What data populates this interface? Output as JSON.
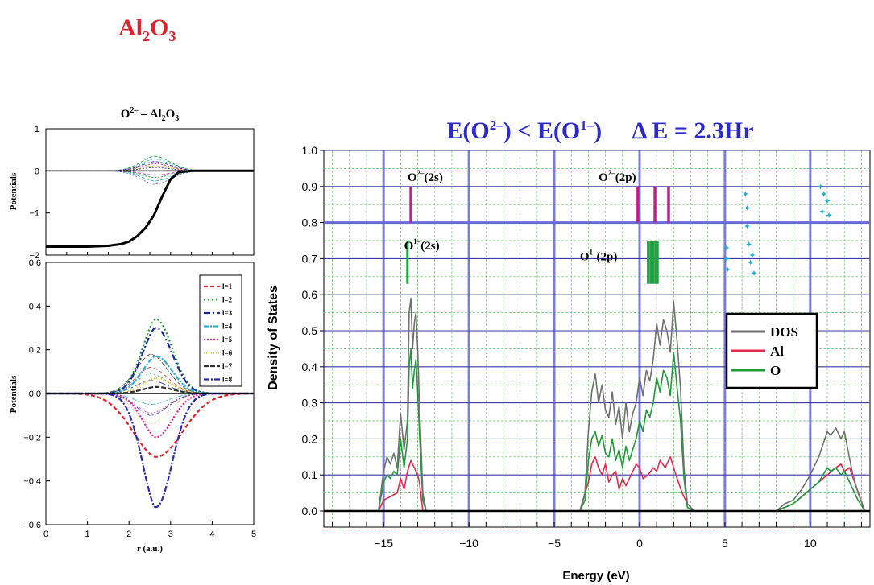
{
  "page_title": {
    "base": "Al",
    "sub1": "2",
    "mid": "O",
    "sub2": "3"
  },
  "chart_data": [
    {
      "type": "line",
      "panel": "left-top",
      "title": {
        "base": "O",
        "sup": "2–",
        "rest": " – Al",
        "sub": "2",
        "tail": "O",
        "sub2": "3"
      },
      "xlabel": "",
      "ylabel": "Potentials",
      "xlim": [
        0,
        5
      ],
      "ylim": [
        -2,
        1
      ],
      "yticks": [
        "1",
        "0",
        "−1",
        "−2"
      ],
      "series": [
        {
          "style": "thick-black",
          "x": [
            0,
            0.5,
            1,
            1.5,
            1.8,
            2,
            2.2,
            2.4,
            2.6,
            2.8,
            3,
            3.2,
            3.5,
            4,
            5
          ],
          "y": [
            -1.8,
            -1.8,
            -1.8,
            -1.78,
            -1.74,
            -1.68,
            -1.55,
            -1.35,
            -1.05,
            -0.6,
            -0.2,
            -0.03,
            0,
            0,
            0
          ]
        }
      ]
    },
    {
      "type": "line",
      "panel": "left-bottom",
      "xlabel": "r (a.u.)",
      "ylabel": "Potentials",
      "xlim": [
        0,
        5
      ],
      "ylim": [
        -0.6,
        0.6
      ],
      "xticks": [
        "0",
        "1",
        "2",
        "3",
        "4",
        "5"
      ],
      "yticks": [
        "0.6",
        "0.4",
        "0.2",
        "0.0",
        "−0.2",
        "−0.4",
        "−0.6"
      ],
      "legend": [
        "l=1",
        "l=2",
        "l=3",
        "l=4",
        "l=5",
        "l=6",
        "l=7",
        "l=8"
      ],
      "legend_position": "top-right",
      "colors": [
        "#e8222a",
        "#1f9a3a",
        "#1a2a9a",
        "#2ab0d8",
        "#e0208a",
        "#e0c020",
        "#303030",
        "#2a2ab0"
      ],
      "series": [
        {
          "name": "l=1",
          "peak": -0.29
        },
        {
          "name": "l=2",
          "peak": 0.34
        },
        {
          "name": "l=3",
          "peak": 0.3
        },
        {
          "name": "l=4",
          "peak": 0.17
        },
        {
          "name": "l=5",
          "peak": -0.2
        },
        {
          "name": "l=6",
          "peak": 0.07
        },
        {
          "name": "l=7",
          "peak": 0.03
        },
        {
          "name": "l=8",
          "peak": -0.52
        }
      ]
    },
    {
      "type": "line",
      "panel": "right",
      "title": {
        "a": "E(O",
        "sup1": "2–",
        "b": ")  <  E(O",
        "sup2": "1–",
        "c": ")     Δ E = 2.3Hr"
      },
      "xlabel": "Energy (eV)",
      "ylabel": "Density of States",
      "xlim": [
        -18.5,
        13.5
      ],
      "ylim": [
        -0.05,
        1.0
      ],
      "xticks": [
        "−15",
        "−10",
        "−5",
        "0",
        "5",
        "10"
      ],
      "xtick_values": [
        -15,
        -10,
        -5,
        0,
        5,
        10
      ],
      "yticks": [
        "0.0",
        "0.1",
        "0.2",
        "0.3",
        "0.4",
        "0.5",
        "0.6",
        "0.7",
        "0.8",
        "0.9",
        "1.0"
      ],
      "ytick_values": [
        0,
        0.1,
        0.2,
        0.3,
        0.4,
        0.5,
        0.6,
        0.7,
        0.8,
        0.9,
        1.0
      ],
      "grid": true,
      "legend": [
        "DOS",
        "Al",
        "O"
      ],
      "legend_position": "right",
      "colors": {
        "DOS": "#707070",
        "Al": "#e8284a",
        "O": "#1f9a3a"
      },
      "annotations": [
        {
          "base": "O",
          "sup": "2–",
          "rest": "(2s)",
          "x": -13.6,
          "y": 0.915
        },
        {
          "base": "O",
          "sup": "2–",
          "rest": "(2p)",
          "x": -2.4,
          "y": 0.915
        },
        {
          "base": "O",
          "sup": "1–",
          "rest": "(2s)",
          "x": -13.8,
          "y": 0.725
        },
        {
          "base": "O",
          "sup": "1–",
          "rest": "(2p)",
          "x": -3.5,
          "y": 0.695
        }
      ],
      "levels": {
        "o2_2s": [
          -13.4
        ],
        "o2_2p": [
          -0.1,
          0.9,
          1.7
        ],
        "o1_2s": [
          -13.6
        ],
        "o1_2p": [
          0.5,
          0.65,
          0.8,
          0.95,
          1.05
        ],
        "cyan": [
          [
            5.1,
            0.73
          ],
          [
            5.1,
            0.7
          ],
          [
            5.15,
            0.67
          ],
          [
            6.2,
            0.88
          ],
          [
            6.3,
            0.84
          ],
          [
            6.3,
            0.79
          ],
          [
            6.4,
            0.74
          ],
          [
            6.6,
            0.71
          ],
          [
            6.5,
            0.69
          ],
          [
            6.7,
            0.66
          ],
          [
            10.6,
            0.9
          ],
          [
            10.8,
            0.88
          ],
          [
            11.0,
            0.86
          ],
          [
            10.7,
            0.83
          ],
          [
            11.1,
            0.82
          ]
        ]
      },
      "series": [
        {
          "name": "DOS",
          "x": [
            -15.3,
            -15,
            -14.8,
            -14.6,
            -14.4,
            -14.2,
            -14,
            -13.8,
            -13.6,
            -13.5,
            -13.4,
            -13.3,
            -13.2,
            -13.1,
            -13,
            -12.9,
            -12.7,
            -12.5,
            -3.5,
            -3.2,
            -3,
            -2.8,
            -2.6,
            -2.4,
            -2.2,
            -2,
            -1.8,
            -1.6,
            -1.4,
            -1.2,
            -1,
            -0.8,
            -0.6,
            -0.4,
            -0.2,
            0,
            0.2,
            0.4,
            0.6,
            0.8,
            1,
            1.2,
            1.4,
            1.6,
            1.8,
            2,
            2.2,
            2.4,
            2.6,
            2.8,
            3.2,
            8,
            8.5,
            9,
            9.5,
            10,
            10.5,
            11,
            11.2,
            11.5,
            11.8,
            12,
            12.2,
            12.5,
            12.8,
            13.2
          ],
          "y": [
            0,
            0.11,
            0.15,
            0.13,
            0.16,
            0.12,
            0.27,
            0.17,
            0.25,
            0.55,
            0.59,
            0.45,
            0.52,
            0.55,
            0.45,
            0.3,
            0.05,
            0,
            0,
            0.05,
            0.22,
            0.33,
            0.38,
            0.3,
            0.35,
            0.28,
            0.26,
            0.33,
            0.24,
            0.29,
            0.2,
            0.3,
            0.22,
            0.27,
            0.3,
            0.37,
            0.32,
            0.39,
            0.36,
            0.42,
            0.52,
            0.46,
            0.53,
            0.5,
            0.44,
            0.58,
            0.47,
            0.34,
            0.12,
            0.02,
            0,
            0,
            0.02,
            0.03,
            0.06,
            0.1,
            0.15,
            0.22,
            0.21,
            0.23,
            0.2,
            0.22,
            0.17,
            0.1,
            0.05,
            0
          ]
        },
        {
          "name": "Al",
          "x": [
            -15.3,
            -15,
            -14.6,
            -14.2,
            -14,
            -13.8,
            -13.6,
            -13.4,
            -13.2,
            -13,
            -12.9,
            -12.7,
            -3.5,
            -3,
            -2.8,
            -2.6,
            -2.4,
            -2.2,
            -2,
            -1.8,
            -1.6,
            -1.4,
            -1.2,
            -1,
            -0.8,
            -0.5,
            -0.2,
            0,
            0.2,
            0.5,
            0.8,
            1,
            1.2,
            1.5,
            1.8,
            2,
            2.2,
            2.5,
            2.8,
            3.2,
            8,
            8.5,
            9,
            9.5,
            10,
            10.5,
            11,
            11.5,
            11.8,
            12,
            12.3,
            12.6,
            13.2
          ],
          "y": [
            0,
            0.03,
            0.04,
            0.05,
            0.09,
            0.06,
            0.11,
            0.14,
            0.12,
            0.1,
            0.08,
            0,
            0,
            0.08,
            0.13,
            0.15,
            0.12,
            0.1,
            0.13,
            0.08,
            0.1,
            0.11,
            0.06,
            0.09,
            0.07,
            0.1,
            0.13,
            0.12,
            0.09,
            0.1,
            0.12,
            0.11,
            0.14,
            0.12,
            0.15,
            0.12,
            0.09,
            0.05,
            0.02,
            0,
            0,
            0.01,
            0.02,
            0.04,
            0.06,
            0.08,
            0.1,
            0.12,
            0.13,
            0.11,
            0.12,
            0.08,
            0
          ]
        },
        {
          "name": "O",
          "x": [
            -15.3,
            -15,
            -14.8,
            -14.6,
            -14.4,
            -14.2,
            -14,
            -13.8,
            -13.6,
            -13.5,
            -13.4,
            -13.3,
            -13.2,
            -13.1,
            -13,
            -12.9,
            -12.7,
            -12.5,
            -3.5,
            -3.2,
            -3,
            -2.8,
            -2.6,
            -2.4,
            -2.2,
            -2,
            -1.8,
            -1.6,
            -1.4,
            -1.2,
            -1,
            -0.8,
            -0.6,
            -0.4,
            -0.2,
            0,
            0.2,
            0.4,
            0.6,
            0.8,
            1,
            1.2,
            1.4,
            1.6,
            1.8,
            2,
            2.2,
            2.4,
            2.6,
            2.8,
            3.2,
            8,
            8.5,
            9,
            9.5,
            10,
            10.5,
            11,
            11.2,
            11.5,
            11.8,
            12,
            12.2,
            12.5,
            12.8,
            13.2
          ],
          "y": [
            0,
            0.08,
            0.1,
            0.09,
            0.11,
            0.1,
            0.2,
            0.12,
            0.2,
            0.4,
            0.45,
            0.34,
            0.39,
            0.42,
            0.33,
            0.22,
            0.03,
            0,
            0,
            0.03,
            0.14,
            0.2,
            0.22,
            0.18,
            0.21,
            0.16,
            0.15,
            0.2,
            0.14,
            0.17,
            0.12,
            0.18,
            0.14,
            0.17,
            0.2,
            0.25,
            0.22,
            0.28,
            0.26,
            0.3,
            0.37,
            0.33,
            0.39,
            0.37,
            0.32,
            0.44,
            0.34,
            0.25,
            0.09,
            0.01,
            0,
            0,
            0.01,
            0.02,
            0.04,
            0.06,
            0.08,
            0.12,
            0.11,
            0.12,
            0.1,
            0.11,
            0.09,
            0.06,
            0.03,
            0
          ]
        }
      ]
    }
  ]
}
